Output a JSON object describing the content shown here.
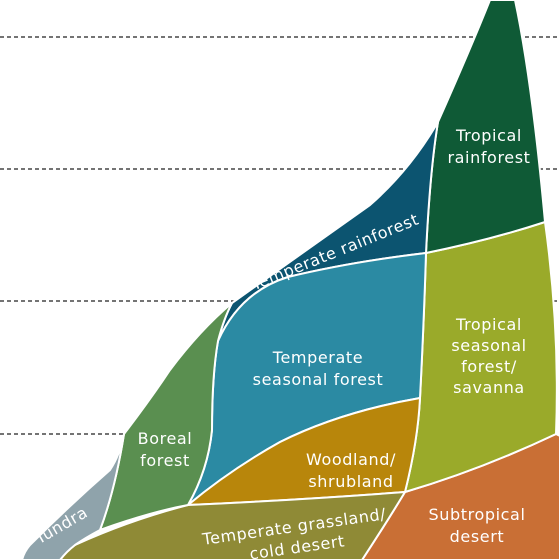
{
  "colors": {
    "tundra": "#8fa3ab",
    "boreal_forest": "#5a8f50",
    "temperate_rainforest": "#0c5470",
    "temperate_seasonal_forest": "#2b8aa3",
    "woodland_shrubland": "#b8860b",
    "temperate_grassland": "#8f8a36",
    "tropical_rainforest": "#0f5a36",
    "tropical_seasonal_forest": "#9aaa2a",
    "subtropical_desert": "#c96f35",
    "gridline": "#222222",
    "label": "#ffffff"
  },
  "biomes": {
    "tundra": {
      "lines": [
        "Tundra"
      ]
    },
    "boreal_forest": {
      "lines": [
        "Boreal",
        "forest"
      ]
    },
    "temperate_rainforest": {
      "lines": [
        "Temperate rainforest"
      ]
    },
    "temperate_seasonal_forest": {
      "lines": [
        "Temperate",
        "seasonal forest"
      ]
    },
    "woodland_shrubland": {
      "lines": [
        "Woodland/",
        "shrubland"
      ]
    },
    "temperate_grassland": {
      "lines": [
        "Temperate grassland/",
        "cold desert"
      ]
    },
    "tropical_rainforest": {
      "lines": [
        "Tropical",
        "rainforest"
      ]
    },
    "tropical_seasonal_forest": {
      "lines": [
        "Tropical",
        "seasonal",
        "forest/",
        "savanna"
      ]
    },
    "subtropical_desert": {
      "lines": [
        "Subtropical",
        "desert"
      ]
    }
  }
}
